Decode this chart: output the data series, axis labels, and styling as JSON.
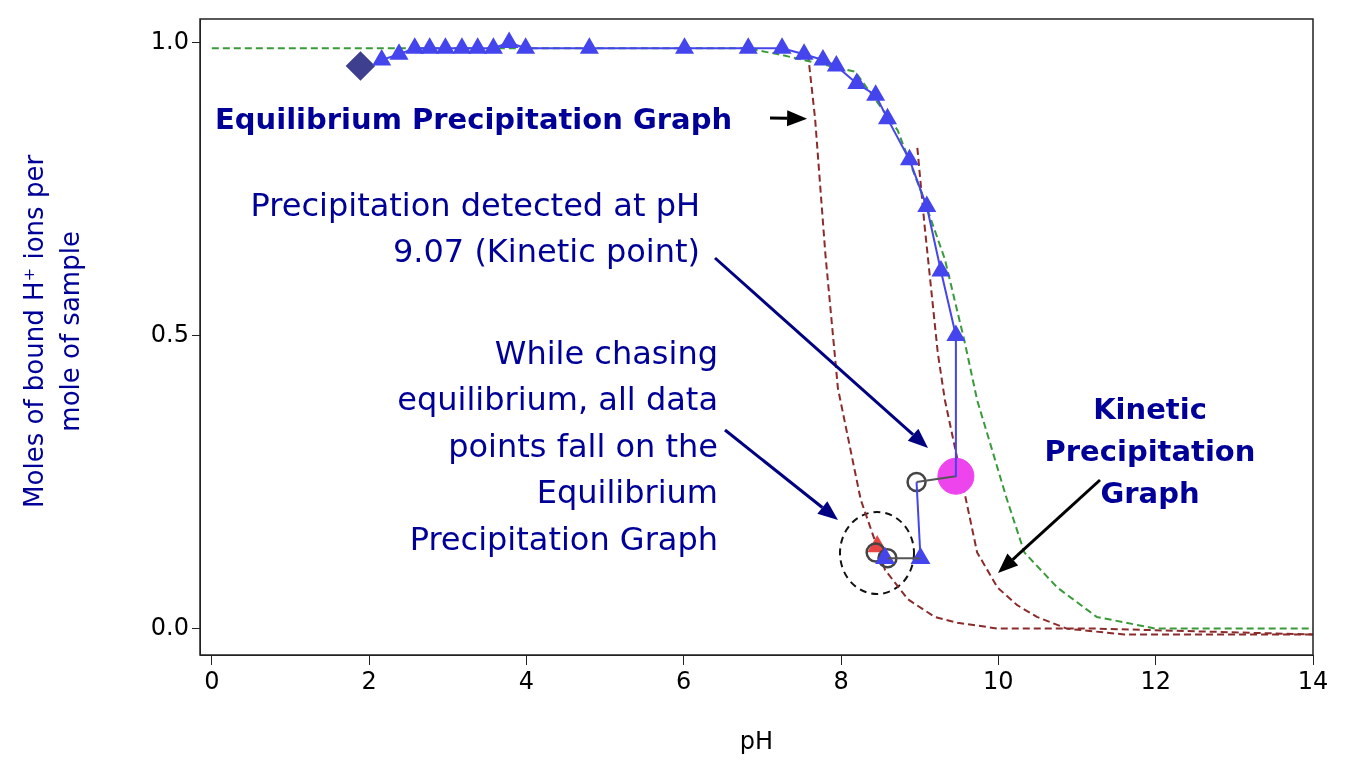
{
  "chart_data": {
    "type": "line",
    "xlabel": "pH",
    "ylabel": "Moles of bound H⁺ ions per mole of sample",
    "xlim": [
      -0.15,
      14
    ],
    "xticks": [
      0,
      2,
      4,
      6,
      8,
      10,
      12,
      14
    ],
    "ylim": [
      -0.045,
      1.04
    ],
    "yticks": [
      {
        "value": 0,
        "label": "0.0"
      },
      {
        "value": 0.5,
        "label": "0.5"
      },
      {
        "value": 1,
        "label": "1.0"
      }
    ],
    "grid": false,
    "legend": false,
    "series": [
      {
        "marker": "triangle",
        "color": "#4545ee",
        "x": [
          2.16,
          2.38,
          2.58,
          2.77,
          2.97,
          3.18,
          3.38,
          3.58,
          3.78,
          3.99,
          4.8,
          6.01,
          6.82,
          7.25,
          7.53,
          7.77,
          7.94,
          8.2,
          8.44,
          8.59,
          8.87,
          9.09,
          9.27,
          9.46
        ],
        "values": [
          0.97,
          0.98,
          0.99,
          0.99,
          0.99,
          0.99,
          0.99,
          0.99,
          1.0,
          0.99,
          0.99,
          0.99,
          0.99,
          0.99,
          0.98,
          0.97,
          0.96,
          0.93,
          0.91,
          0.87,
          0.8,
          0.72,
          0.61,
          0.5
        ]
      },
      {
        "type": "line",
        "marker": "none",
        "color": "#4545ee",
        "x": [
          9.46,
          9.46
        ],
        "values": [
          0.5,
          0.26
        ]
      },
      {
        "type": "line",
        "marker": "none",
        "color": "#4545ee",
        "x": [
          8.96,
          9.01
        ],
        "values": [
          0.25,
          0.12
        ]
      },
      {
        "type": "line",
        "marker": "none",
        "color": "#555555",
        "x": [
          9.46,
          8.96
        ],
        "values": [
          0.26,
          0.25
        ]
      },
      {
        "type": "line",
        "marker": "none",
        "color": "#555555",
        "x": [
          9.01,
          8.59
        ],
        "values": [
          0.12,
          0.12
        ]
      },
      {
        "type": "scatter",
        "marker": "triangle",
        "color": "#4545ee",
        "x": [
          8.56,
          9.01
        ],
        "values": [
          0.12,
          0.12
        ]
      },
      {
        "type": "scatter",
        "marker": "circle",
        "color": "#444444",
        "x": [
          8.96,
          8.44,
          8.59
        ],
        "values": [
          0.25,
          0.13,
          0.12
        ]
      },
      {
        "type": "scatter",
        "marker": "triangle",
        "color": "#e84545",
        "x": [
          8.46
        ],
        "values": [
          0.14
        ]
      },
      {
        "type": "bubble",
        "color": "#ee44ee",
        "x": [
          9.46
        ],
        "values": [
          0.26
        ],
        "sizes": [
          1
        ]
      },
      {
        "type": "scatter",
        "marker": "diamond",
        "color": "#3f3f8f",
        "x": [
          1.89
        ],
        "values": [
          0.96
        ]
      },
      {
        "type": "line",
        "marker": "none",
        "line_style": "dashed",
        "color": "#3a9a3a",
        "x": [
          0,
          6.8,
          7.2,
          8.18,
          8.72,
          9.06,
          9.32,
          9.57,
          9.73,
          10.11,
          10.33,
          10.75,
          11.25,
          12,
          13,
          14
        ],
        "values": [
          0.99,
          0.99,
          0.98,
          0.95,
          0.85,
          0.73,
          0.63,
          0.49,
          0.39,
          0.22,
          0.13,
          0.07,
          0.02,
          0.0,
          0.0,
          0.0
        ]
      },
      {
        "type": "line",
        "marker": "none",
        "line_style": "dashed",
        "color": "#8b2b2b",
        "x": [
          7.58,
          7.67,
          7.8,
          7.96,
          8.25,
          8.56,
          8.85,
          9.19,
          9.48,
          10,
          11.25,
          14
        ],
        "values": [
          0.98,
          0.87,
          0.64,
          0.41,
          0.22,
          0.1,
          0.05,
          0.02,
          0.01,
          0.0,
          0.0,
          -0.01
        ]
      },
      {
        "type": "line",
        "marker": "none",
        "line_style": "dashed",
        "color": "#8b2b2b",
        "x": [
          8.97,
          9.06,
          9.23,
          9.32,
          9.73,
          9.99,
          10.24,
          10.49,
          10.87,
          11.6,
          14
        ],
        "values": [
          0.82,
          0.69,
          0.47,
          0.39,
          0.13,
          0.07,
          0.04,
          0.02,
          0.0,
          -0.01,
          -0.01
        ]
      }
    ],
    "annotations": [
      {
        "text": "Equilibrium Precipitation Graph",
        "x": 7.67,
        "y": 0.87
      },
      "Precipitation detected at pH 9.07 (Kinetic point)",
      "While chasing equilibrium, all data points fall on the Equilibrium Precipitation Graph",
      "Kinetic Precipitation Graph"
    ]
  }
}
